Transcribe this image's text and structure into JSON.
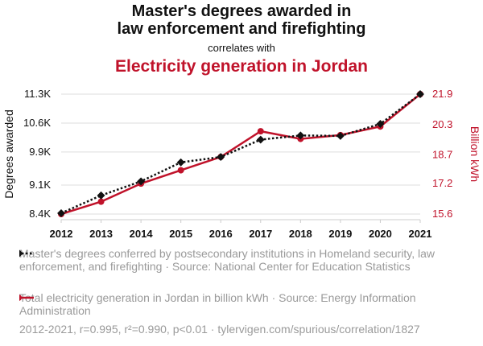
{
  "title": {
    "line1": "Master's degrees awarded in",
    "line2": "law enforcement and firefighting",
    "correlates": "correlates with",
    "line3": "Electricity generation in Jordan"
  },
  "colors": {
    "series1": "#111111",
    "series2": "#c0122a",
    "grid": "#dddddd"
  },
  "legend": {
    "series1": "Master's degrees conferred by postsecondary institutions in Homeland security, law enforcement, and firefighting · Source: National Center for Education Statistics",
    "series2": "Total electricity generation in Jordan in billion kWh · Source: Energy Information Administration"
  },
  "footer": "2012-2021, r=0.995, r²=0.990, p<0.01 · tylervigen.com/spurious/correlation/1827",
  "chart_data": {
    "type": "line",
    "x": [
      2012,
      2013,
      2014,
      2015,
      2016,
      2017,
      2018,
      2019,
      2020,
      2021
    ],
    "grid": "horizontal",
    "xlabel": "",
    "left_axis": {
      "label": "Degrees awarded",
      "ylim": [
        8400,
        11300
      ],
      "ticks": [
        8400,
        9100,
        9900,
        10600,
        11300
      ],
      "tick_labels": [
        "8.4K",
        "9.1K",
        "9.9K",
        "10.6K",
        "11.3K"
      ]
    },
    "right_axis": {
      "label": "Billion kWh",
      "ylim": [
        15.6,
        21.9
      ],
      "ticks": [
        15.6,
        17.2,
        18.7,
        20.3,
        21.9
      ],
      "tick_labels": [
        "15.6",
        "17.2",
        "18.7",
        "20.3",
        "21.9"
      ]
    },
    "series": [
      {
        "name": "Master's degrees conferred by postsecondary institutions in Homeland security, law enforcement, and firefighting",
        "axis": "left",
        "style": "dotted",
        "marker": "diamond",
        "values": [
          8420,
          8850,
          9190,
          9650,
          9780,
          10200,
          10300,
          10290,
          10580,
          11300
        ]
      },
      {
        "name": "Total electricity generation in Jordan in billion kWh",
        "axis": "right",
        "style": "solid",
        "marker": "circle",
        "values": [
          15.6,
          16.25,
          17.2,
          17.9,
          18.6,
          19.95,
          19.55,
          19.75,
          20.2,
          21.9
        ]
      }
    ]
  }
}
